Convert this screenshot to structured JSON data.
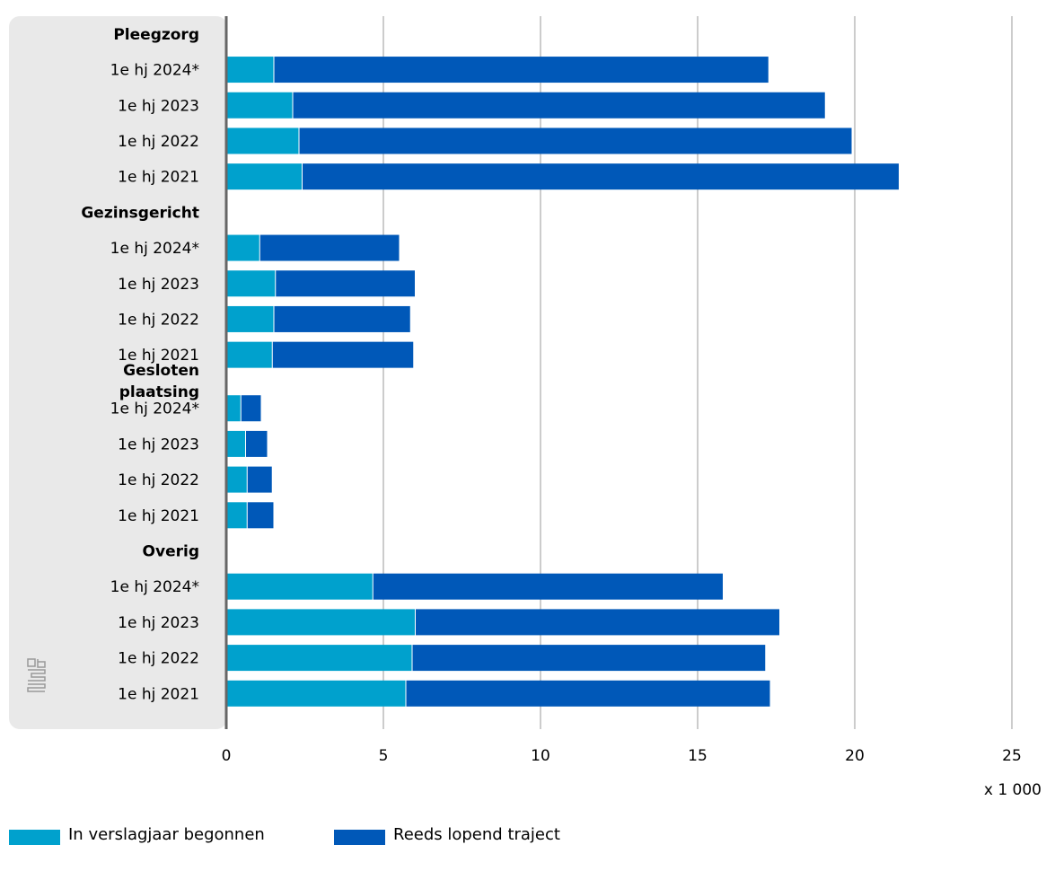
{
  "chart_data": {
    "type": "bar",
    "orientation": "horizontal",
    "stacked": true,
    "groups": [
      {
        "label": "Pleegzorg",
        "categories": [
          "1e hj 2024*",
          "1e hj 2023",
          "1e hj 2022",
          "1e hj 2021"
        ]
      },
      {
        "label": "Gezinsgericht",
        "categories": [
          "1e hj 2024*",
          "1e hj 2023",
          "1e hj 2022",
          "1e hj 2021"
        ]
      },
      {
        "label": [
          "Gesloten",
          "plaatsing"
        ],
        "categories": [
          "1e hj 2024*",
          "1e hj 2023",
          "1e hj 2022",
          "1e hj 2021"
        ]
      },
      {
        "label": "Overig",
        "categories": [
          "1e hj 2024*",
          "1e hj 2023",
          "1e hj 2022",
          "1e hj 2021"
        ]
      }
    ],
    "series": [
      {
        "name": "In verslagjaar begonnen",
        "color": "#00a1cd",
        "values": [
          1.5,
          2.1,
          2.3,
          2.4,
          1.05,
          1.55,
          1.5,
          1.45,
          0.45,
          0.6,
          0.65,
          0.65,
          4.65,
          6.0,
          5.9,
          5.7
        ]
      },
      {
        "name": "Reeds lopend traject",
        "color": "#0058b8",
        "values": [
          15.75,
          16.95,
          17.6,
          19.0,
          4.45,
          4.45,
          4.35,
          4.5,
          0.65,
          0.7,
          0.8,
          0.85,
          11.15,
          11.6,
          11.25,
          11.6
        ]
      }
    ],
    "xlim": [
      0,
      25
    ],
    "xticks": [
      "0",
      "5",
      "10",
      "15",
      "20",
      "25"
    ],
    "unit_label": "x 1 000",
    "grid": true,
    "legend_position": "bottom-left"
  }
}
